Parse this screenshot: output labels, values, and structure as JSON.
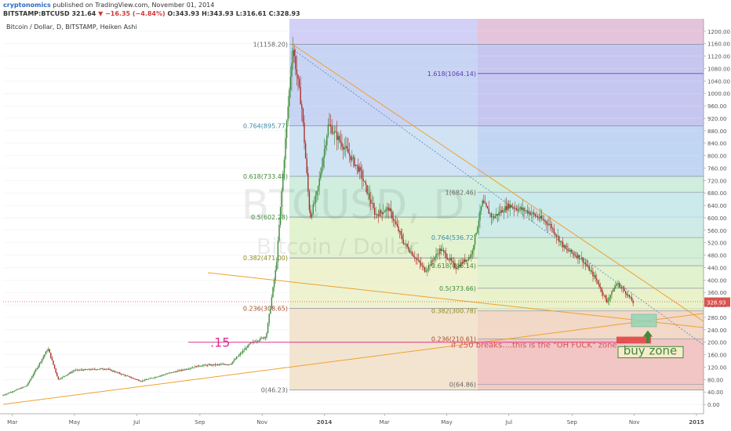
{
  "header": {
    "author": "cryptonomics",
    "published": "published on TradingView.com, November 01, 2014",
    "symbol": "BITSTAMP:BTCUSD",
    "last": "321.64",
    "change": "−16.35 (−4.84%)",
    "open": "O:343.93",
    "high": "H:343.93",
    "low": "L:316.61",
    "close": "C:328.93"
  },
  "chart_title": "Bitcoin / Dollar, D, BITSTAMP, Heiken Ashi",
  "watermark": {
    "symbol": "BTCUSD, D",
    "name": "Bitcoin / Dollar"
  },
  "colors": {
    "bull": "#3d8a3a",
    "bear": "#a8312b",
    "trendline": "#f0a030",
    "fib_line": "#7a3cc8",
    "price_tag": "#d9534f",
    "annotation": "#e0308a"
  },
  "chart_data": {
    "type": "candlestick",
    "style": "Heiken Ashi",
    "y_axis": {
      "min": -30,
      "max": 1240,
      "ticks": [
        0,
        40,
        80,
        120,
        160,
        200,
        240,
        280,
        320,
        360,
        400,
        440,
        480,
        520,
        560,
        600,
        640,
        680,
        720,
        760,
        800,
        840,
        880,
        920,
        960,
        1000,
        1040,
        1080,
        1120,
        1160,
        1200
      ],
      "position": "right"
    },
    "x_axis": {
      "ticks": [
        "Mar",
        "May",
        "Jul",
        "Sep",
        "Nov",
        "2014",
        "Mar",
        "May",
        "Jul",
        "Sep",
        "Nov",
        "2015"
      ]
    },
    "last_price": "328.93",
    "price_path": [
      [
        "2013-02-20",
        30
      ],
      [
        "2013-03-15",
        60
      ],
      [
        "2013-04-05",
        180
      ],
      [
        "2013-04-15",
        80
      ],
      [
        "2013-05-01",
        110
      ],
      [
        "2013-06-01",
        115
      ],
      [
        "2013-07-05",
        75
      ],
      [
        "2013-08-01",
        100
      ],
      [
        "2013-09-01",
        125
      ],
      [
        "2013-10-01",
        130
      ],
      [
        "2013-10-20",
        195
      ],
      [
        "2013-11-05",
        220
      ],
      [
        "2013-11-15",
        450
      ],
      [
        "2013-11-25",
        900
      ],
      [
        "2013-12-01",
        1150
      ],
      [
        "2013-12-10",
        950
      ],
      [
        "2013-12-18",
        600
      ],
      [
        "2013-12-25",
        680
      ],
      [
        "2014-01-05",
        900
      ],
      [
        "2014-01-20",
        830
      ],
      [
        "2014-02-05",
        750
      ],
      [
        "2014-02-20",
        610
      ],
      [
        "2014-03-05",
        630
      ],
      [
        "2014-03-20",
        520
      ],
      [
        "2014-04-10",
        430
      ],
      [
        "2014-04-25",
        500
      ],
      [
        "2014-05-10",
        440
      ],
      [
        "2014-05-25",
        480
      ],
      [
        "2014-06-05",
        650
      ],
      [
        "2014-06-15",
        600
      ],
      [
        "2014-07-01",
        640
      ],
      [
        "2014-07-20",
        620
      ],
      [
        "2014-08-10",
        580
      ],
      [
        "2014-08-25",
        500
      ],
      [
        "2014-09-10",
        470
      ],
      [
        "2014-09-25",
        400
      ],
      [
        "2014-10-05",
        330
      ],
      [
        "2014-10-15",
        390
      ],
      [
        "2014-10-25",
        355
      ],
      [
        "2014-11-01",
        322
      ]
    ],
    "fib_set_1": {
      "levels": [
        {
          "label": "1(1158.20)",
          "value": 1158.2
        },
        {
          "label": "0.764(895.77)",
          "value": 895.77
        },
        {
          "label": "0.618(733.48)",
          "value": 733.48
        },
        {
          "label": "0.5(602.28)",
          "value": 602.28
        },
        {
          "label": "0.382(471.00)",
          "value": 471.0
        },
        {
          "label": "0.236(308.65)",
          "value": 308.65
        },
        {
          "label": "0(46.23)",
          "value": 46.23
        }
      ],
      "extension": {
        "label": "1.618(1064.14)",
        "value": 1064.14
      }
    },
    "fib_set_2": {
      "levels": [
        {
          "label": "1(682.46)",
          "value": 682.46
        },
        {
          "label": "0.764(536.72)",
          "value": 536.72
        },
        {
          "label": "0.618(446.14)",
          "value": 446.14
        },
        {
          "label": "0.5(373.66)",
          "value": 373.66
        },
        {
          "label": "0.382(300.78)",
          "value": 300.78
        },
        {
          "label": "0.236(210.61)",
          "value": 210.61
        },
        {
          "label": "0(64.86)",
          "value": 64.86
        }
      ]
    },
    "annotations": {
      "level_15": ".15",
      "oh_zone": "if 250 breaks....this is the \"OH FUCK\" zone",
      "buy_zone": "buy zone"
    }
  }
}
